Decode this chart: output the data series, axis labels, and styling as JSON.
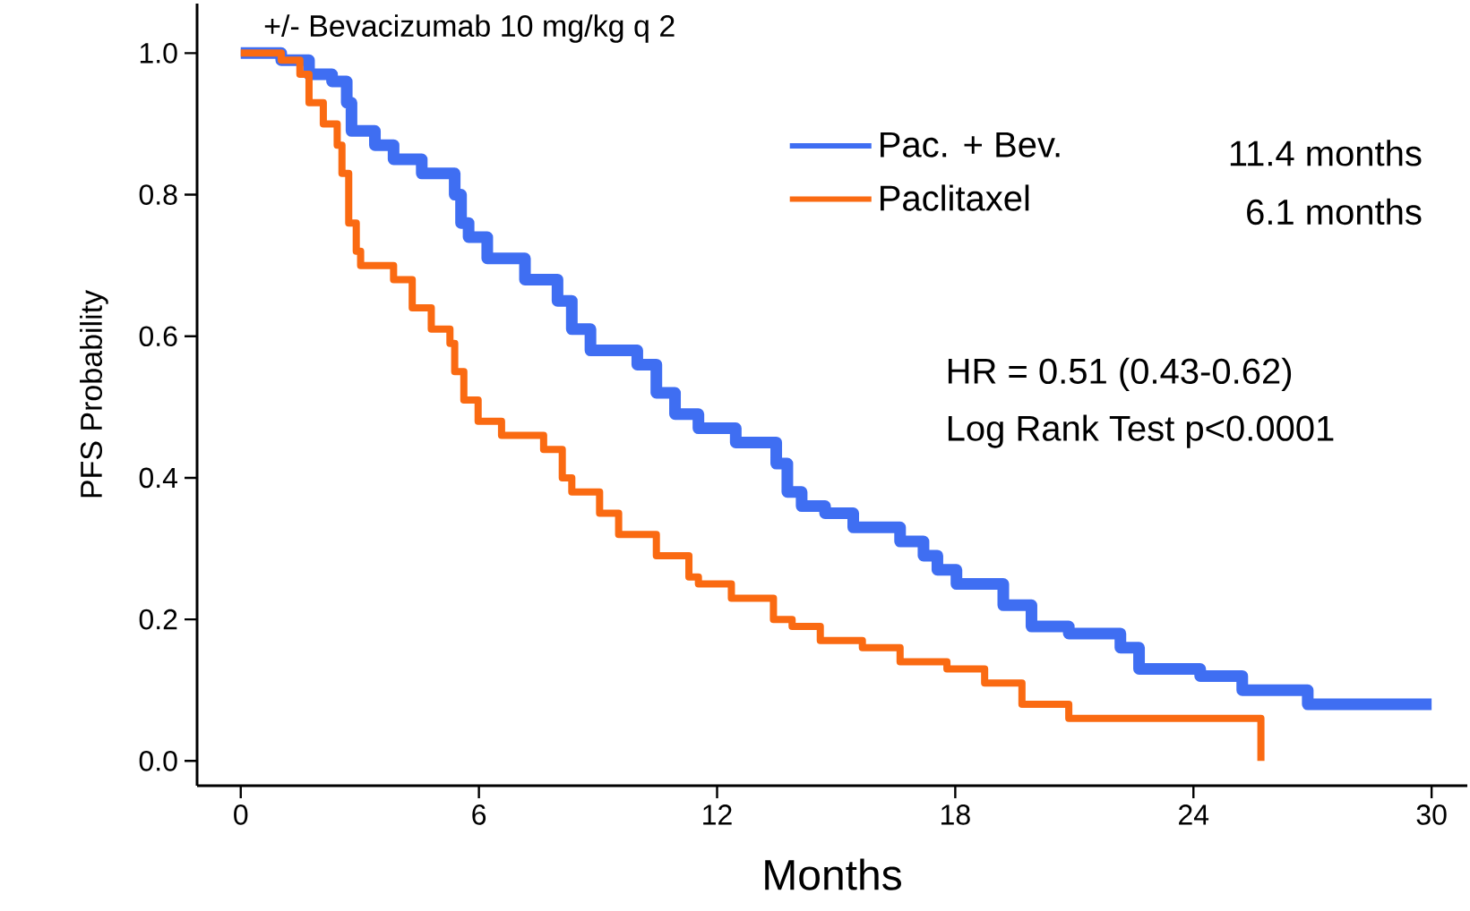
{
  "chart_data": {
    "type": "step",
    "title": "+/- Bevacizumab 10 mg/kg q 2",
    "xlabel": "Months",
    "ylabel": "PFS Probability",
    "xlim": [
      -1.1,
      30.9
    ],
    "xticks": [
      0,
      6,
      12,
      18,
      24,
      30
    ],
    "ylim": [
      -0.035,
      1.07
    ],
    "yticks": [
      {
        "value": 0,
        "label": "0.0"
      },
      {
        "value": 0.2,
        "label": "0.2"
      },
      {
        "value": 0.4,
        "label": "0.4"
      },
      {
        "value": 0.6,
        "label": "0.6"
      },
      {
        "value": 0.8,
        "label": "0.8"
      },
      {
        "value": 1,
        "label": "1.0"
      }
    ],
    "legend": "top right",
    "grid": false,
    "marker": "none",
    "line_style": "solid",
    "series": [
      {
        "name": "Pac. + Bev.",
        "color": "#3f6ef2",
        "x": [
          0,
          1.02,
          1.72,
          2.3,
          2.67,
          2.79,
          3.38,
          3.85,
          4.56,
          5.39,
          5.55,
          5.74,
          6.21,
          7.16,
          7.98,
          8.34,
          8.81,
          9.99,
          10.47,
          10.94,
          11.53,
          12.47,
          13.49,
          13.77,
          14.13,
          14.72,
          15.43,
          16.61,
          17.2,
          17.55,
          18.03,
          19.21,
          19.92,
          20.86,
          22.16,
          22.63,
          24.17,
          25.23,
          26.88,
          30
        ],
        "values": [
          1.0,
          0.99,
          0.97,
          0.96,
          0.93,
          0.89,
          0.87,
          0.85,
          0.83,
          0.8,
          0.76,
          0.74,
          0.71,
          0.68,
          0.65,
          0.61,
          0.58,
          0.56,
          0.52,
          0.49,
          0.47,
          0.45,
          0.42,
          0.38,
          0.36,
          0.35,
          0.33,
          0.31,
          0.29,
          0.27,
          0.25,
          0.22,
          0.19,
          0.18,
          0.16,
          0.13,
          0.12,
          0.1,
          0.08,
          0.08
        ]
      },
      {
        "name": "Paclitaxel",
        "color": "#fa6a12",
        "x": [
          0,
          1.02,
          1.49,
          1.72,
          2.08,
          2.43,
          2.55,
          2.72,
          2.91,
          3.02,
          3.85,
          4.32,
          4.8,
          5.27,
          5.39,
          5.62,
          5.98,
          6.57,
          7.63,
          8.1,
          8.34,
          9.04,
          9.52,
          10.47,
          11.29,
          11.53,
          12.36,
          13.42,
          13.89,
          14.6,
          15.66,
          16.61,
          17.79,
          18.74,
          19.68,
          20.86,
          25.7,
          25.7
        ],
        "values": [
          1.0,
          0.99,
          0.97,
          0.93,
          0.9,
          0.87,
          0.83,
          0.76,
          0.72,
          0.7,
          0.68,
          0.64,
          0.61,
          0.59,
          0.55,
          0.51,
          0.48,
          0.46,
          0.44,
          0.4,
          0.38,
          0.35,
          0.32,
          0.29,
          0.26,
          0.25,
          0.23,
          0.2,
          0.19,
          0.17,
          0.16,
          0.14,
          0.13,
          0.11,
          0.08,
          0.06,
          0.06,
          0.0
        ]
      }
    ],
    "annotations": [
      "11.4 months",
      "6.1 months",
      "HR = 0.51 (0.43-0.62)",
      "Log Rank Test   p<0.0001"
    ]
  }
}
